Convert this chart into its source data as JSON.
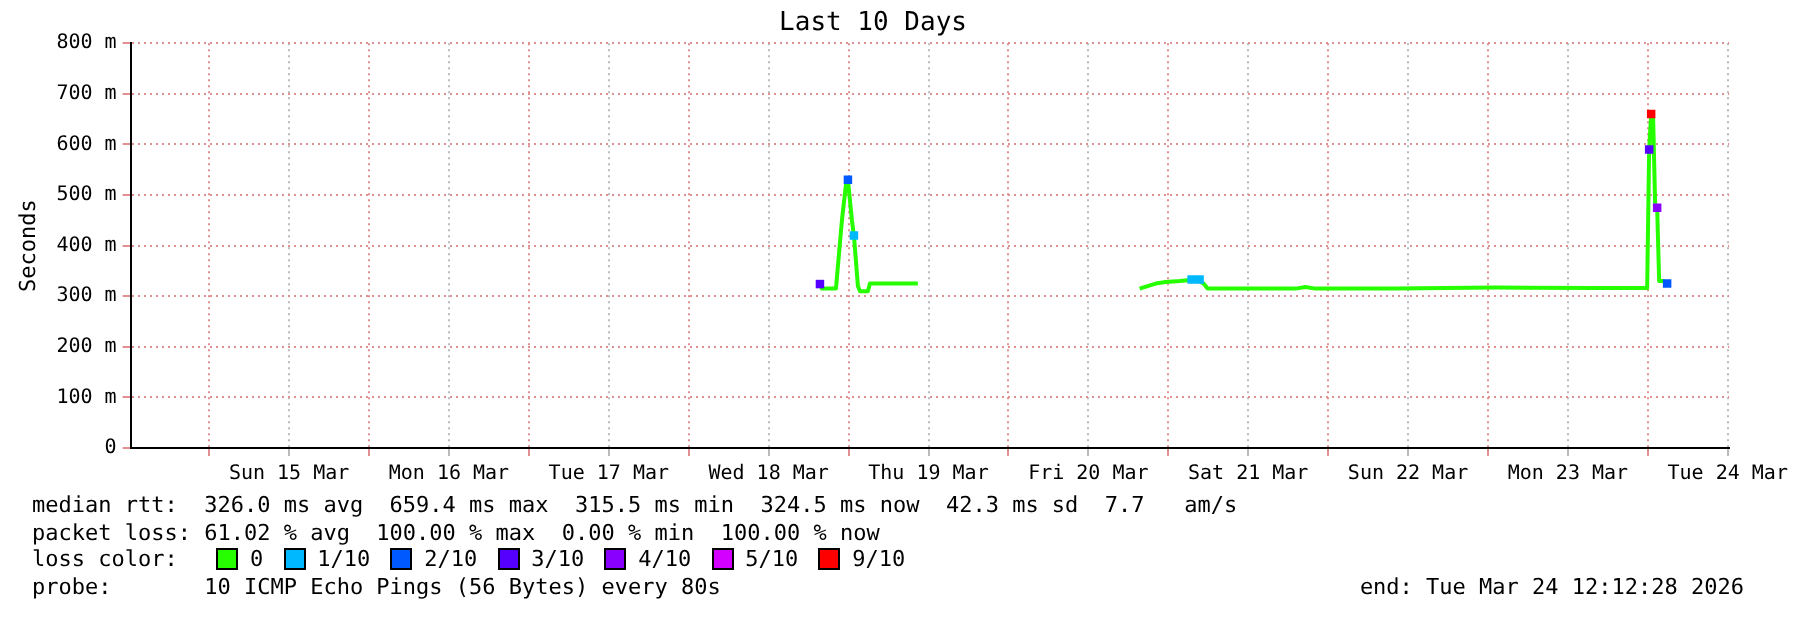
{
  "chart_data": {
    "type": "line",
    "title": "Last 10 Days",
    "ylabel": "Seconds",
    "legend_title": "loss color:",
    "xlim": [
      "2026-03-14T12:12",
      "2026-03-24T12:12"
    ],
    "xticks": [
      {
        "value": "2026-03-15T00:00",
        "label": null
      },
      {
        "value": "2026-03-15T12:00",
        "label": "Sun 15 Mar"
      },
      {
        "value": "2026-03-16T00:00",
        "label": null
      },
      {
        "value": "2026-03-16T12:00",
        "label": "Mon 16 Mar"
      },
      {
        "value": "2026-03-17T00:00",
        "label": null
      },
      {
        "value": "2026-03-17T12:00",
        "label": "Tue 17 Mar"
      },
      {
        "value": "2026-03-18T00:00",
        "label": null
      },
      {
        "value": "2026-03-18T12:00",
        "label": "Wed 18 Mar"
      },
      {
        "value": "2026-03-19T00:00",
        "label": null
      },
      {
        "value": "2026-03-19T12:00",
        "label": "Thu 19 Mar"
      },
      {
        "value": "2026-03-20T00:00",
        "label": null
      },
      {
        "value": "2026-03-20T12:00",
        "label": "Fri 20 Mar"
      },
      {
        "value": "2026-03-21T00:00",
        "label": null
      },
      {
        "value": "2026-03-21T12:00",
        "label": "Sat 21 Mar"
      },
      {
        "value": "2026-03-22T00:00",
        "label": null
      },
      {
        "value": "2026-03-22T12:00",
        "label": "Sun 22 Mar"
      },
      {
        "value": "2026-03-23T00:00",
        "label": null
      },
      {
        "value": "2026-03-23T12:00",
        "label": "Mon 23 Mar"
      },
      {
        "value": "2026-03-24T00:00",
        "label": null
      },
      {
        "value": "2026-03-24T12:00",
        "label": "Tue 24 Mar"
      }
    ],
    "ylim": [
      0,
      800
    ],
    "yticks": [
      0,
      {
        "value": 100,
        "label": "100 m"
      },
      {
        "value": 200,
        "label": "200 m"
      },
      {
        "value": 300,
        "label": "300 m"
      },
      {
        "value": 400,
        "label": "400 m"
      },
      {
        "value": 500,
        "label": "500 m"
      },
      {
        "value": 600,
        "label": "600 m"
      },
      {
        "value": 700,
        "label": "700 m"
      },
      {
        "value": 800,
        "label": "800 m"
      }
    ],
    "grid": true,
    "legend": "bottom",
    "line_style": "solid",
    "series": [
      {
        "name": "0",
        "color": "#26ff00",
        "x": [
          "2026-03-18T19:42",
          "2026-03-18T20:00",
          "2026-03-18T22:06",
          "2026-03-18T22:24",
          "2026-03-18T23:00",
          "2026-03-18T23:36",
          "2026-03-18T23:54",
          "2026-03-19T00:30",
          "2026-03-19T00:48",
          "2026-03-19T01:24",
          "2026-03-19T01:42",
          "2026-03-19T02:54",
          "2026-03-19T03:12",
          "2026-03-19T10:24",
          "2026-03-20T12:00",
          "2026-03-20T19:42",
          "2026-03-20T20:54",
          "2026-03-20T22:06",
          "2026-03-20T23:36",
          "2026-03-21T01:42",
          "2026-03-21T04:06",
          "2026-03-21T05:18",
          "2026-03-21T05:54",
          "2026-03-21T19:06",
          "2026-03-21T20:36",
          "2026-03-21T22:06",
          "2026-03-22T10:06",
          "2026-03-23T01:06",
          "2026-03-23T16:06",
          "2026-03-23T23:54",
          "2026-03-24T00:12",
          "2026-03-24T00:30",
          "2026-03-24T00:48",
          "2026-03-24T01:06",
          "2026-03-24T01:24",
          "2026-03-24T01:42",
          "2026-03-24T02:18",
          "2026-03-24T02:54"
        ],
        "values": [
          324,
          315,
          315,
          360,
          450,
          520,
          530,
          450,
          420,
          320,
          310,
          310,
          325,
          325,
          null,
          315,
          320,
          325,
          328,
          330,
          333,
          325,
          315,
          315,
          318,
          315,
          315,
          317,
          316,
          316,
          590,
          660,
          650,
          480,
          475,
          330,
          330,
          325
        ]
      },
      {
        "name": "1/10",
        "type": "scatter",
        "marker": "square",
        "color": "#00b8ff",
        "x": [
          "2026-03-19T00:48",
          "2026-03-21T03:30",
          "2026-03-21T04:42"
        ],
        "values": [
          420,
          333,
          333
        ]
      },
      {
        "name": "2/10",
        "type": "scatter",
        "marker": "square",
        "color": "#0059ff",
        "x": [
          "2026-03-18T23:54",
          "2026-03-24T02:54"
        ],
        "values": [
          530,
          325
        ]
      },
      {
        "name": "3/10",
        "type": "scatter",
        "marker": "square",
        "color": "#5500ff",
        "x": [
          "2026-03-18T19:42",
          "2026-03-24T00:12"
        ],
        "values": [
          324,
          590
        ]
      },
      {
        "name": "4/10",
        "type": "scatter",
        "marker": "square",
        "color": "#8a00ff",
        "x": [
          "2026-03-24T01:24"
        ],
        "values": [
          475
        ]
      },
      {
        "name": "5/10",
        "type": "scatter",
        "marker": "square",
        "color": "#d300ff"
      },
      {
        "name": "9/10",
        "type": "scatter",
        "marker": "square",
        "color": "#ff0000",
        "x": [
          "2026-03-24T00:30"
        ],
        "values": [
          660
        ]
      }
    ],
    "annotations": [
      "median rtt:  326.0 ms avg  659.4 ms max  315.5 ms min  324.5 ms now  42.3 ms sd  7.7   am/s",
      "packet loss: 61.02 % avg  100.00 % max  0.00 % min  100.00 % now",
      "probe:       10 ICMP Echo Pings (56 Bytes) every 80s",
      "end: Tue Mar 24 12:12:28 2026"
    ]
  }
}
